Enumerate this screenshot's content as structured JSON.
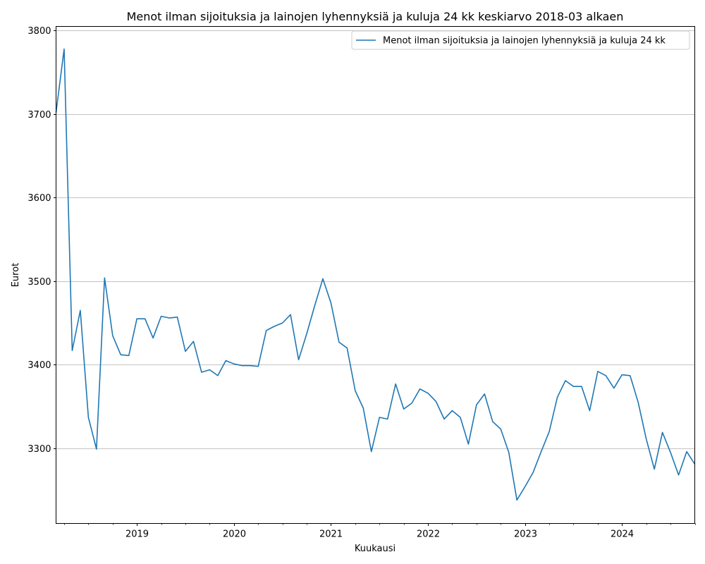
{
  "chart_data": {
    "type": "line",
    "title": "Menot ilman sijoituksia ja lainojen lyhennyksiä ja kuluja 24 kk keskiarvo 2018-03 alkaen",
    "xlabel": "Kuukausi",
    "ylabel": "Eurot",
    "ylim": [
      3210,
      3805
    ],
    "xlim": [
      "2018-03",
      "2024-10"
    ],
    "y_ticks": [
      3300,
      3400,
      3500,
      3600,
      3700,
      3800
    ],
    "x_ticks": [
      "2019-01",
      "2020-01",
      "2021-01",
      "2022-01",
      "2023-01",
      "2024-01"
    ],
    "x_tick_labels": [
      "2019",
      "2020",
      "2021",
      "2022",
      "2023",
      "2024"
    ],
    "grid": "y",
    "legend_position": "top-right",
    "line_color": "#1f77b4",
    "series": [
      {
        "name": "Menot ilman sijoituksia ja lainojen lyhennyksiä ja kuluja 24 kk",
        "x": [
          "2018-03",
          "2018-04",
          "2018-05",
          "2018-06",
          "2018-07",
          "2018-08",
          "2018-09",
          "2018-10",
          "2018-11",
          "2018-12",
          "2019-01",
          "2019-02",
          "2019-03",
          "2019-04",
          "2019-05",
          "2019-06",
          "2019-07",
          "2019-08",
          "2019-09",
          "2019-10",
          "2019-11",
          "2019-12",
          "2020-01",
          "2020-02",
          "2020-03",
          "2020-04",
          "2020-05",
          "2020-06",
          "2020-07",
          "2020-08",
          "2020-09",
          "2020-10",
          "2020-11",
          "2020-12",
          "2021-01",
          "2021-02",
          "2021-03",
          "2021-04",
          "2021-05",
          "2021-06",
          "2021-07",
          "2021-08",
          "2021-09",
          "2021-10",
          "2021-11",
          "2021-12",
          "2022-01",
          "2022-02",
          "2022-03",
          "2022-04",
          "2022-05",
          "2022-06",
          "2022-07",
          "2022-08",
          "2022-09",
          "2022-10",
          "2022-11",
          "2022-12",
          "2023-01",
          "2023-02",
          "2023-03",
          "2023-04",
          "2023-05",
          "2023-06",
          "2023-07",
          "2023-08",
          "2023-09",
          "2023-10",
          "2023-11",
          "2023-12",
          "2024-01",
          "2024-02",
          "2024-03",
          "2024-04",
          "2024-05",
          "2024-06",
          "2024-07",
          "2024-08",
          "2024-09",
          "2024-10"
        ],
        "values": [
          3702,
          3778,
          3417,
          3465,
          3337,
          3299,
          3504,
          3435,
          3412,
          3411,
          3455,
          3455,
          3432,
          3458,
          3456,
          3457,
          3416,
          3428,
          3391,
          3394,
          3387,
          3405,
          3401,
          3399,
          3399,
          3398,
          3441,
          3446,
          3450,
          3460,
          3406,
          3437,
          3471,
          3503,
          3474,
          3427,
          3420,
          3369,
          3348,
          3296,
          3337,
          3335,
          3377,
          3347,
          3354,
          3371,
          3366,
          3356,
          3335,
          3345,
          3337,
          3305,
          3352,
          3365,
          3332,
          3323,
          3295,
          3238,
          3254,
          3271,
          3296,
          3320,
          3361,
          3381,
          3374,
          3374,
          3345,
          3392,
          3387,
          3372,
          3388,
          3387,
          3355,
          3311,
          3275,
          3319,
          3295,
          3268,
          3296,
          3281
        ]
      }
    ]
  }
}
